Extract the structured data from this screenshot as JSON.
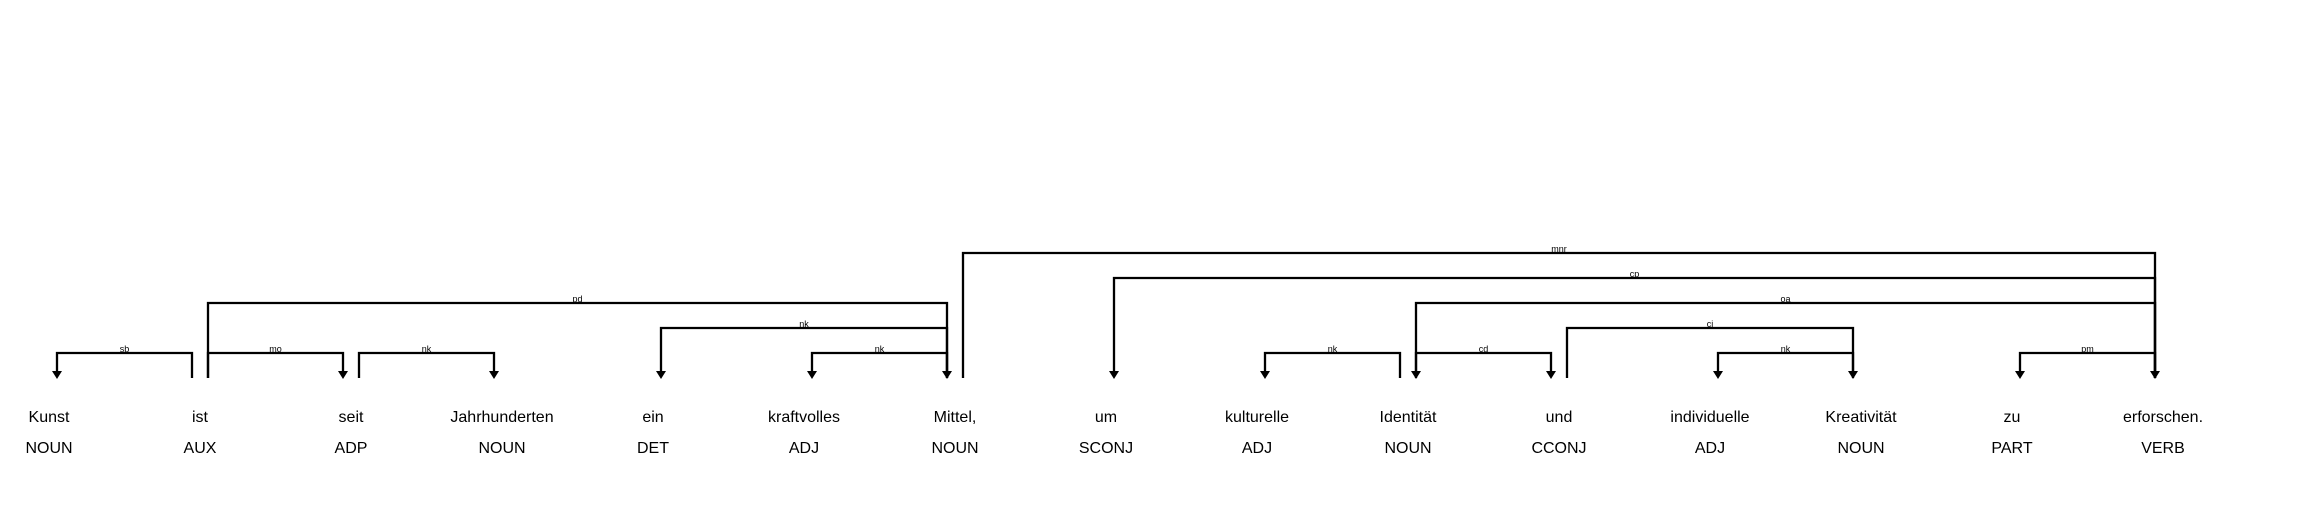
{
  "tokens": [
    {
      "text": "Kunst",
      "tag": "NOUN"
    },
    {
      "text": "ist",
      "tag": "AUX"
    },
    {
      "text": "seit",
      "tag": "ADP"
    },
    {
      "text": "Jahrhunderten",
      "tag": "NOUN"
    },
    {
      "text": "ein",
      "tag": "DET"
    },
    {
      "text": "kraftvolles",
      "tag": "ADJ"
    },
    {
      "text": "Mittel,",
      "tag": "NOUN"
    },
    {
      "text": "um",
      "tag": "SCONJ"
    },
    {
      "text": "kulturelle",
      "tag": "ADJ"
    },
    {
      "text": "Identität",
      "tag": "NOUN"
    },
    {
      "text": "und",
      "tag": "CCONJ"
    },
    {
      "text": "individuelle",
      "tag": "ADJ"
    },
    {
      "text": "Kreativität",
      "tag": "NOUN"
    },
    {
      "text": "zu",
      "tag": "PART"
    },
    {
      "text": "erforschen.",
      "tag": "VERB"
    }
  ],
  "arcs": [
    {
      "from": 1,
      "to": 0,
      "label": "sb"
    },
    {
      "from": 1,
      "to": 2,
      "label": "mo"
    },
    {
      "from": 2,
      "to": 3,
      "label": "nk"
    },
    {
      "from": 1,
      "to": 6,
      "label": "pd"
    },
    {
      "from": 6,
      "to": 4,
      "label": "nk"
    },
    {
      "from": 6,
      "to": 5,
      "label": "nk"
    },
    {
      "from": 6,
      "to": 14,
      "label": "mnr"
    },
    {
      "from": 14,
      "to": 7,
      "label": "cp"
    },
    {
      "from": 9,
      "to": 8,
      "label": "nk"
    },
    {
      "from": 14,
      "to": 9,
      "label": "oa"
    },
    {
      "from": 9,
      "to": 10,
      "label": "cd"
    },
    {
      "from": 10,
      "to": 12,
      "label": "cj"
    },
    {
      "from": 12,
      "to": 11,
      "label": "nk"
    },
    {
      "from": 14,
      "to": 13,
      "label": "pm"
    }
  ]
}
